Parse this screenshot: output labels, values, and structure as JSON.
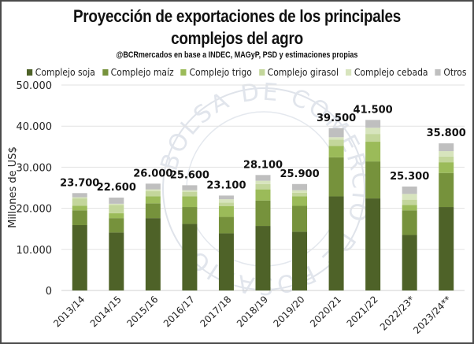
{
  "chart_data": {
    "type": "bar",
    "stacked": true,
    "title": "Proyección de exportaciones de los principales complejos del agro",
    "title_line1": "Proyección de exportaciones de los principales",
    "title_line2": "complejos del agro",
    "subtitle": "@BCRmercados en base a INDEC, MAGyP, PSD y estimaciones propias",
    "xlabel": "",
    "ylabel": "Millones de US$",
    "ylim": [
      0,
      50000
    ],
    "yticks": [
      0,
      10000,
      20000,
      30000,
      40000,
      50000
    ],
    "ytick_labels": [
      "0",
      "10.000",
      "20.000",
      "30.000",
      "40.000",
      "50.000"
    ],
    "grid": true,
    "legend_position": "top",
    "categories": [
      "2013/14",
      "2014/15",
      "2015/16",
      "2016/17",
      "2017/18",
      "2018/19",
      "2019/20",
      "2020/21",
      "2021/22",
      "2022/23*",
      "2023/24**"
    ],
    "series": [
      {
        "name": "Complejo soja",
        "color": "#4e6228",
        "values": [
          15900,
          14100,
          17600,
          16200,
          13900,
          15700,
          14300,
          22900,
          22400,
          13500,
          20300
        ]
      },
      {
        "name": "Complejo maíz",
        "color": "#76923c",
        "values": [
          3600,
          3500,
          3600,
          4100,
          4000,
          6200,
          6300,
          9500,
          9000,
          6000,
          8300
        ]
      },
      {
        "name": "Complejo trigo",
        "color": "#9bbb59",
        "values": [
          1100,
          1200,
          1700,
          2600,
          2600,
          2700,
          2300,
          2800,
          4800,
          1300,
          2600
        ]
      },
      {
        "name": "Complejo girasol",
        "color": "#c3d69b",
        "values": [
          1800,
          2000,
          1300,
          1100,
          900,
          1300,
          900,
          1500,
          1900,
          1300,
          1400
        ]
      },
      {
        "name": "Complejo cebada",
        "color": "#d7e4bd",
        "values": [
          300,
          300,
          400,
          400,
          800,
          800,
          600,
          600,
          1500,
          1400,
          1300
        ]
      },
      {
        "name": "Otros",
        "color": "#bfbfbf",
        "values": [
          1000,
          1500,
          1400,
          1200,
          900,
          1400,
          1500,
          2200,
          1900,
          1800,
          1900
        ]
      }
    ],
    "totals": [
      23700,
      22600,
      26000,
      25600,
      23100,
      28100,
      25900,
      39500,
      41500,
      25300,
      35800
    ],
    "total_labels": [
      "23.700",
      "22.600",
      "26.000",
      "25.600",
      "23.100",
      "28.100",
      "25.900",
      "39.500",
      "41.500",
      "25.300",
      "35.800"
    ]
  },
  "watermark": "BOLSA DE COMERCIO DE ROSARIO"
}
